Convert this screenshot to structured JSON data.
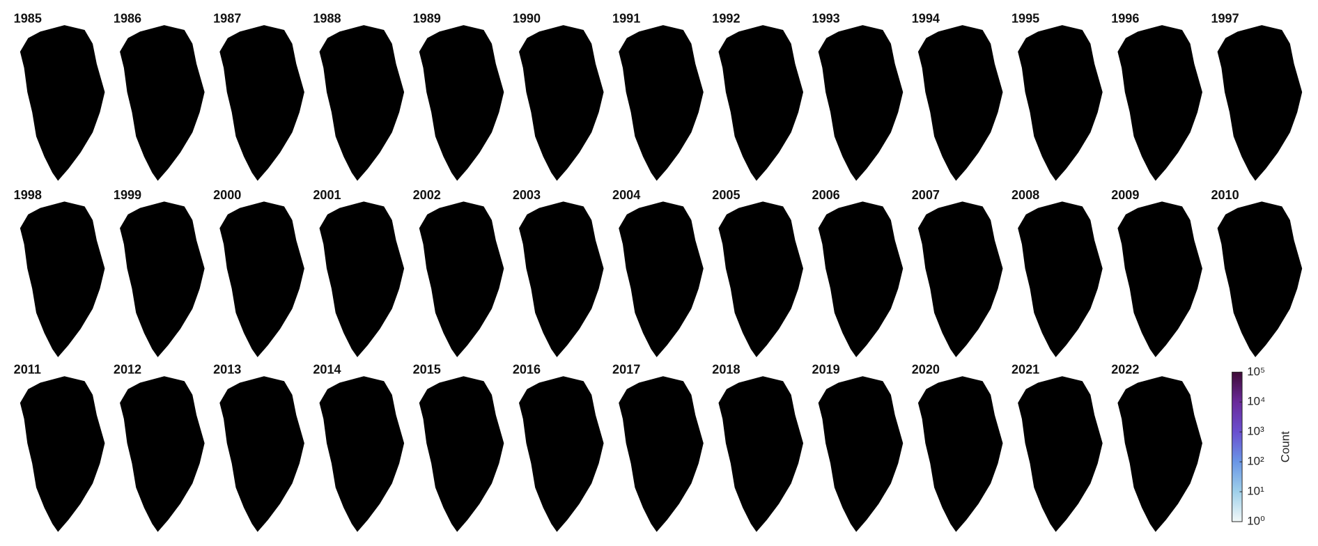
{
  "years": [
    "1985",
    "1986",
    "1987",
    "1988",
    "1989",
    "1990",
    "1991",
    "1992",
    "1993",
    "1994",
    "1995",
    "1996",
    "1997",
    "1998",
    "1999",
    "2000",
    "2001",
    "2002",
    "2003",
    "2004",
    "2005",
    "2006",
    "2007",
    "2008",
    "2009",
    "2010",
    "2011",
    "2012",
    "2013",
    "2014",
    "2015",
    "2016",
    "2017",
    "2018",
    "2019",
    "2020",
    "2021",
    "2022"
  ],
  "colorbar": {
    "label": "Count",
    "scale": "log",
    "lim": [
      1,
      100000
    ],
    "colors": [
      "#f2f8f8",
      "#9fd0ea",
      "#6a96e6",
      "#6a4fcf",
      "#6a2a9a",
      "#3e0a36"
    ],
    "ticks": [
      {
        "value": 1,
        "label": "10⁰"
      },
      {
        "value": 10,
        "label": "10¹"
      },
      {
        "value": 100,
        "label": "10²"
      },
      {
        "value": 1000,
        "label": "10³"
      },
      {
        "value": 10000,
        "label": "10⁴"
      },
      {
        "value": 100000,
        "label": "10⁵"
      }
    ]
  }
}
